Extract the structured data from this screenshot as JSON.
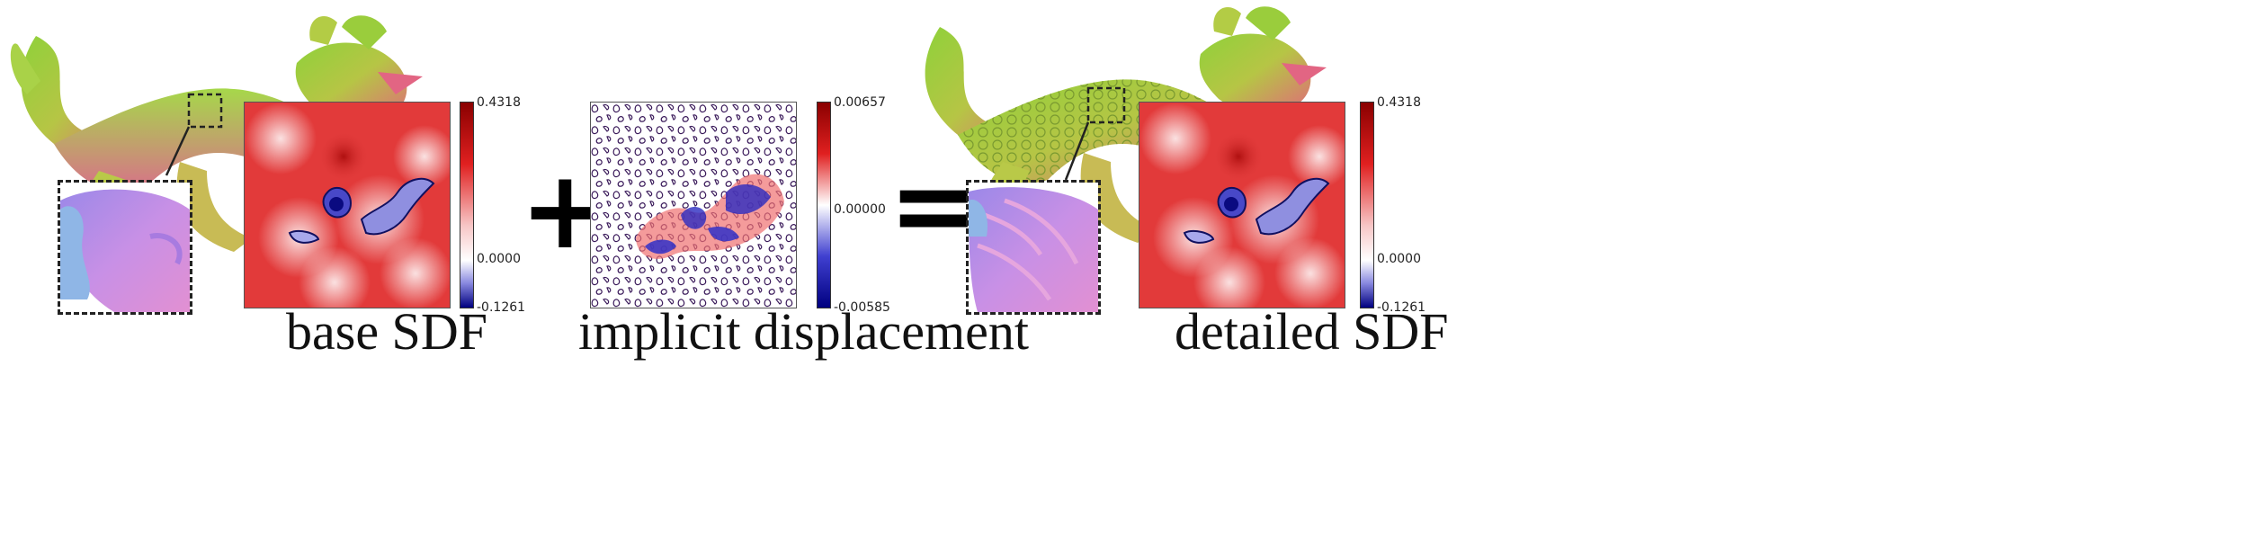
{
  "panels": {
    "base": {
      "caption": "base SDF",
      "colorbar": {
        "max": "0.4318",
        "mid": "0.0000",
        "min": "-0.1261"
      }
    },
    "displacement": {
      "caption": "implicit displacement",
      "colorbar": {
        "max": "0.00657",
        "mid": "0.00000",
        "min": "-0.00585"
      }
    },
    "detailed": {
      "caption": "detailed SDF",
      "colorbar": {
        "max": "0.4318",
        "mid": "0.0000",
        "min": "-0.1261"
      }
    }
  },
  "operators": {
    "plus": "+",
    "equals": "="
  },
  "icons": [
    "dragon-render",
    "normal-map-inset",
    "sdf-heatmap",
    "colorbar"
  ],
  "colors": {
    "positive": "#d7191c",
    "zero": "#ffffff",
    "negative": "#08087a",
    "dragon_green": "#9ccc3a",
    "dragon_pink": "#e0506e"
  }
}
